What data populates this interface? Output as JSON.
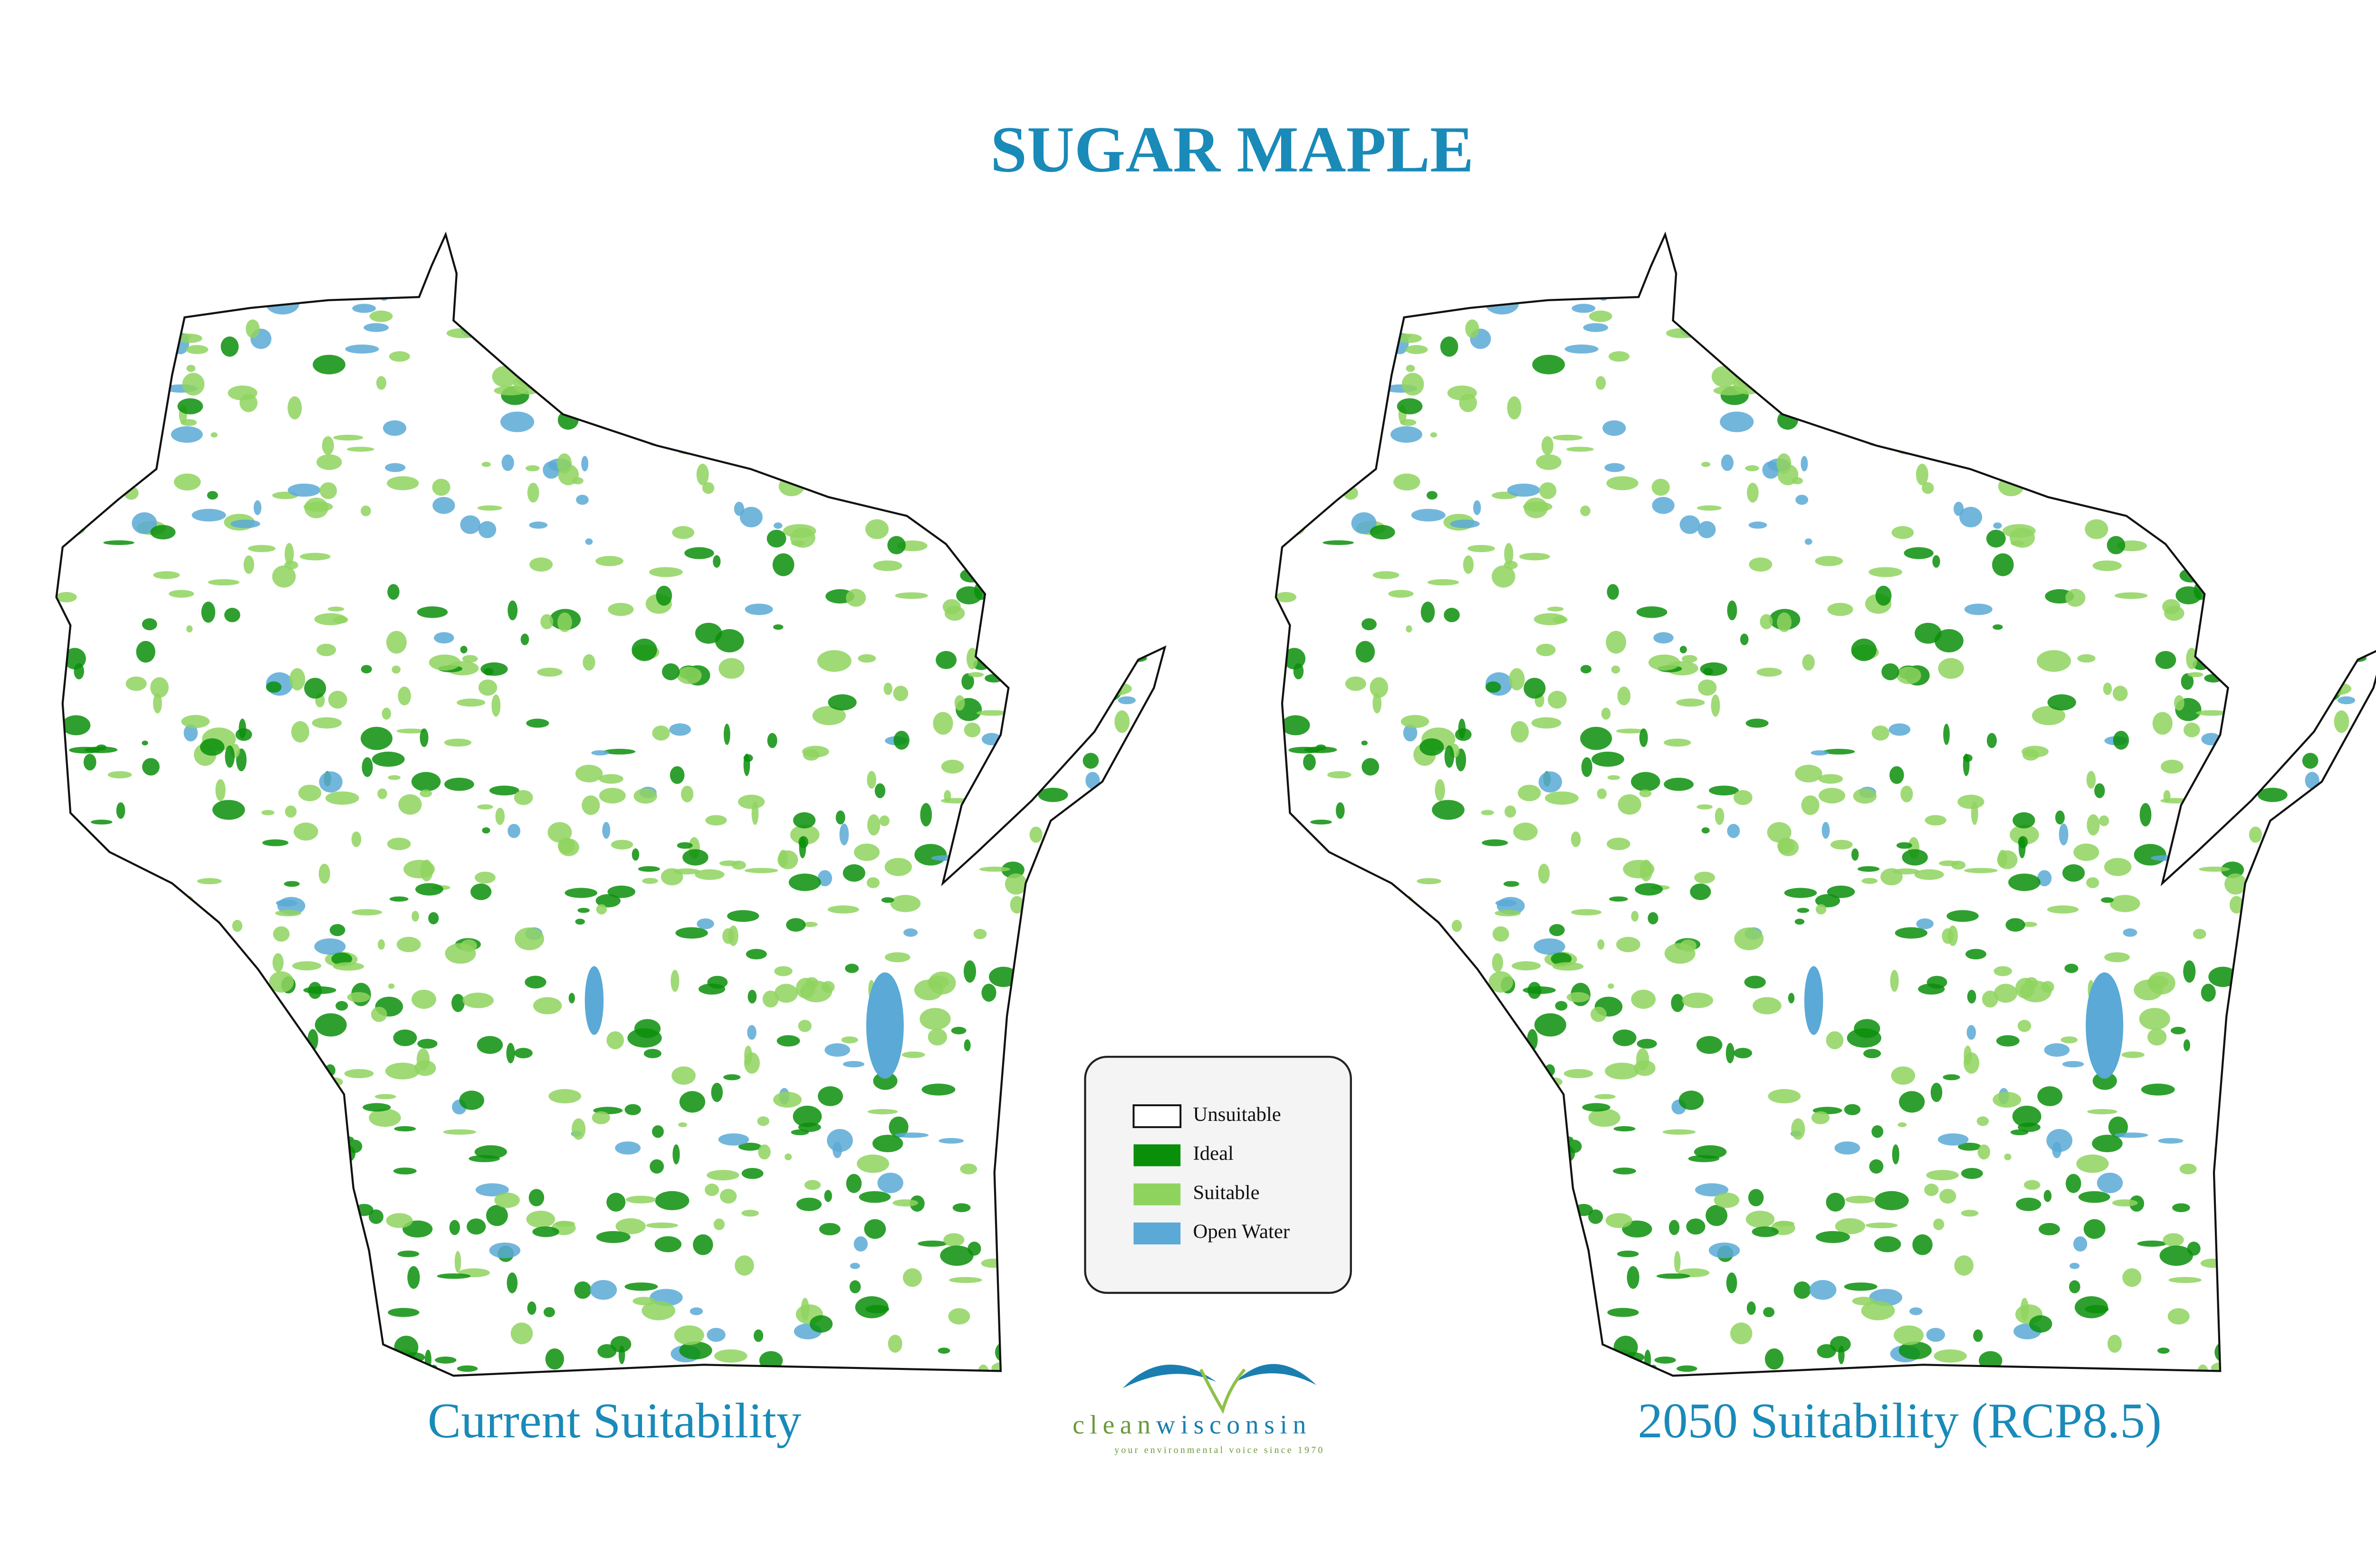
{
  "title": "SUGAR MAPLE",
  "maps": [
    {
      "caption": "Current Suitability"
    },
    {
      "caption": "2050 Suitability (RCP8.5)"
    }
  ],
  "legend": [
    {
      "label": "Unsuitable",
      "color": "#ffffff"
    },
    {
      "label": "Ideal",
      "color": "#0a8f0a"
    },
    {
      "label": "Suitable",
      "color": "#8fd35f"
    },
    {
      "label": "Open Water",
      "color": "#5aa9d6"
    }
  ],
  "logo": {
    "word1": "clean",
    "word2": "wisconsin",
    "tagline": "your environmental voice since 1970"
  }
}
